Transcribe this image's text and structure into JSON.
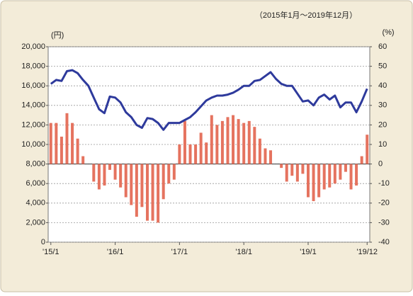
{
  "chart_data": {
    "type": "bar-line",
    "subtitle": "（2015年1月～2019年12月）",
    "y_label": "(円)",
    "y2_label": "(%)",
    "categories": [
      "'15/1",
      null,
      null,
      null,
      null,
      null,
      null,
      null,
      null,
      null,
      null,
      null,
      "'16/1",
      null,
      null,
      null,
      null,
      null,
      null,
      null,
      null,
      null,
      null,
      null,
      "'17/1",
      null,
      null,
      null,
      null,
      null,
      null,
      null,
      null,
      null,
      null,
      null,
      "'18/1",
      null,
      null,
      null,
      null,
      null,
      null,
      null,
      null,
      null,
      null,
      null,
      "'19/1",
      null,
      null,
      null,
      null,
      null,
      null,
      null,
      null,
      null,
      null,
      "'19/12"
    ],
    "series": [
      {
        "type": "bar",
        "axis": "y2",
        "color": "#e5735f",
        "values": [
          21,
          21,
          14,
          26,
          21,
          13,
          4,
          0,
          -9,
          -13,
          -11,
          -3,
          -8,
          -12,
          -17,
          -21,
          -27,
          -22,
          -29,
          -29,
          -30,
          -18,
          -10,
          -8,
          10,
          22,
          10,
          10,
          16,
          11,
          25,
          20,
          22,
          24,
          25,
          23,
          21,
          22,
          19,
          13,
          8,
          7,
          0,
          -2,
          -9,
          -6,
          -9,
          -5,
          -17,
          -19,
          -17,
          -13,
          -12,
          -10,
          -8,
          -4,
          -13,
          -11,
          4,
          15
        ]
      },
      {
        "type": "line",
        "axis": "y",
        "color": "#2e3a9c",
        "values": [
          16200,
          16600,
          16500,
          17500,
          17600,
          17300,
          16600,
          16000,
          14800,
          13600,
          13200,
          14900,
          14800,
          14300,
          13300,
          12800,
          12000,
          11700,
          12700,
          12600,
          12200,
          11500,
          12200,
          12200,
          12200,
          12500,
          12800,
          13300,
          13900,
          14500,
          14800,
          15000,
          15000,
          15100,
          15300,
          15600,
          16000,
          16000,
          16500,
          16600,
          17000,
          17400,
          16700,
          16200,
          16000,
          16000,
          15200,
          14400,
          14500,
          14000,
          14800,
          15100,
          14600,
          15000,
          13800,
          14300,
          14300,
          13300,
          14400,
          15700
        ]
      }
    ],
    "ylim": [
      0,
      20000
    ],
    "yticks": [
      0,
      {
        "value": 2000,
        "label": "2,000"
      },
      {
        "value": 4000,
        "label": "4,000"
      },
      {
        "value": 6000,
        "label": "6,000"
      },
      {
        "value": 8000,
        "label": "8,000"
      },
      {
        "value": 10000,
        "label": "10,000"
      },
      {
        "value": 12000,
        "label": "12,000"
      },
      {
        "value": 14000,
        "label": "14,000"
      },
      {
        "value": 16000,
        "label": "16,000"
      },
      {
        "value": 18000,
        "label": "18,000"
      },
      {
        "value": 20000,
        "label": "20,000"
      }
    ],
    "y2lim": [
      -40,
      60
    ],
    "y2ticks": [
      -40,
      -30,
      -20,
      -10,
      0,
      10,
      20,
      30,
      40,
      50,
      60
    ],
    "grid": true
  }
}
